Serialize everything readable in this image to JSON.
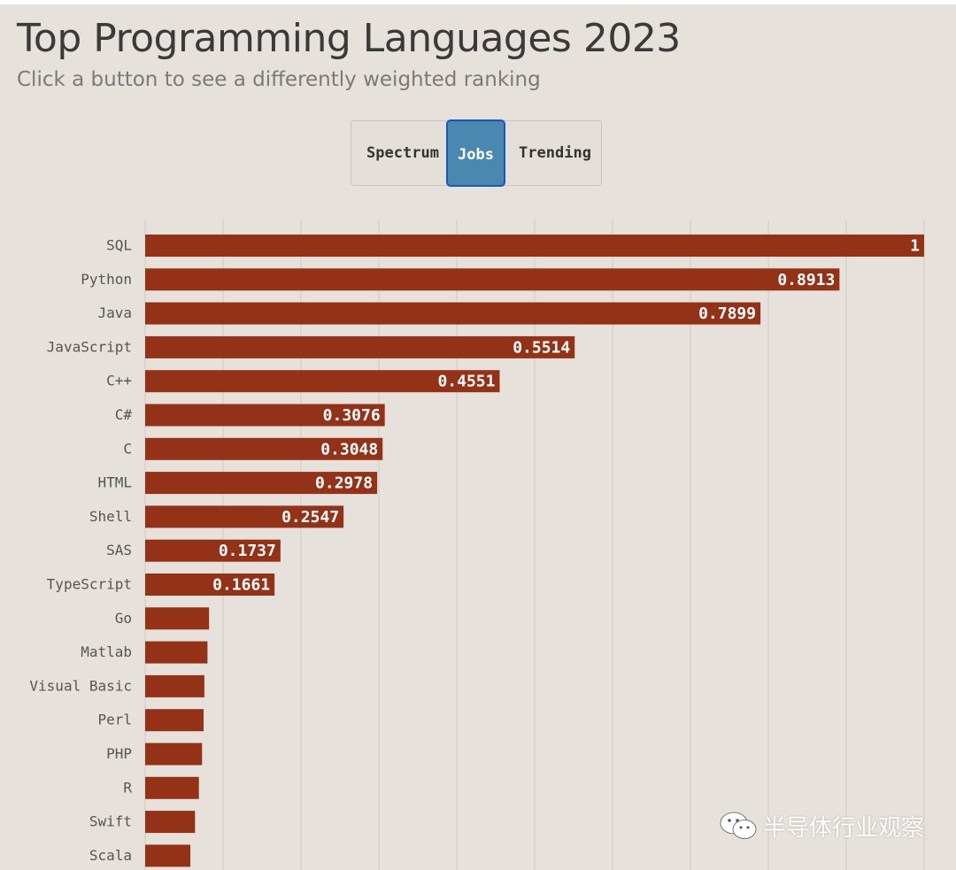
{
  "header": {
    "title": "Top Programming Languages 2023",
    "subtitle": "Click a button to see a differently weighted ranking"
  },
  "buttons": {
    "spectrum": "Spectrum",
    "jobs": "Jobs",
    "trending": "Trending",
    "selected": "Jobs"
  },
  "colors": {
    "bar": "#943218",
    "grid": "#d8d3cc",
    "selected_button": "#4a88b0"
  },
  "chart_data": {
    "type": "bar",
    "orientation": "horizontal",
    "title": "Top Programming Languages 2023",
    "ranking": "Jobs",
    "xlim": [
      0,
      1
    ],
    "grid": true,
    "categories": [
      "SQL",
      "Python",
      "Java",
      "JavaScript",
      "C++",
      "C#",
      "C",
      "HTML",
      "Shell",
      "SAS",
      "TypeScript",
      "Go",
      "Matlab",
      "Visual Basic",
      "Perl",
      "PHP",
      "R",
      "Swift",
      "Scala"
    ],
    "values": [
      1,
      0.8913,
      0.7899,
      0.5514,
      0.4551,
      0.3076,
      0.3048,
      0.2978,
      0.2547,
      0.1737,
      0.1661,
      0.082,
      0.08,
      0.076,
      0.075,
      0.073,
      0.069,
      0.064,
      0.058
    ],
    "value_labels": [
      "1",
      "0.8913",
      "0.7899",
      "0.5514",
      "0.4551",
      "0.3076",
      "0.3048",
      "0.2978",
      "0.2547",
      "0.1737",
      "0.1661",
      "",
      "",
      "",
      "",
      "",
      "",
      "",
      ""
    ]
  },
  "watermark": {
    "icon": "wechat-icon",
    "text": "半导体行业观察"
  }
}
